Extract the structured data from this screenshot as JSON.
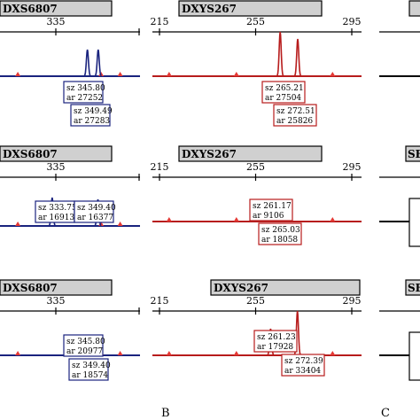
{
  "chart_data": [
    {
      "type": "line",
      "panel": "column-1",
      "color": "#1a237e",
      "rows": [
        {
          "marker": "DXS6807",
          "ticks": [
            "335"
          ],
          "peaks": [
            345.8,
            349.49
          ],
          "labels": [
            {
              "sz": "sz 345.80",
              "ar": "ar 27252"
            },
            {
              "sz": "sz 349.49",
              "ar": "ar 27283"
            }
          ]
        },
        {
          "marker": "DXS6807",
          "ticks": [
            "335"
          ],
          "peaks": [
            333.75,
            349.4
          ],
          "labels": [
            {
              "sz": "sz 333.75",
              "ar": "ar 16913"
            },
            {
              "sz": "sz 349.40",
              "ar": "ar 16377"
            }
          ]
        },
        {
          "marker": "DXS6807",
          "ticks": [
            "335"
          ],
          "peaks": [
            345.8,
            349.4
          ],
          "labels": [
            {
              "sz": "sz 345.80",
              "ar": "ar 20977"
            },
            {
              "sz": "sz 349.40",
              "ar": "ar 18574"
            }
          ]
        }
      ]
    },
    {
      "type": "line",
      "panel": "column-2",
      "color": "#b71c1c",
      "xlim": [
        215,
        295
      ],
      "rows": [
        {
          "marker": "DXYS267",
          "ticks": [
            "215",
            "255",
            "295"
          ],
          "peaks": [
            265.21,
            272.51
          ],
          "labels": [
            {
              "sz": "sz 265.21",
              "ar": "ar 27504"
            },
            {
              "sz": "sz 272.51",
              "ar": "ar 25826"
            }
          ]
        },
        {
          "marker": "DXYS267",
          "ticks": [
            "215",
            "255",
            "295"
          ],
          "peaks": [
            261.17,
            265.03
          ],
          "labels": [
            {
              "sz": "sz 261.17",
              "ar": "ar 9106"
            },
            {
              "sz": "sz 265.03",
              "ar": "ar 18058"
            }
          ]
        },
        {
          "marker": "DXYS267",
          "ticks": [
            "215",
            "255",
            "295"
          ],
          "peaks": [
            261.23,
            272.39
          ],
          "labels": [
            {
              "sz": "sz 261.23",
              "ar": "ar 17928"
            },
            {
              "sz": "sz 272.39",
              "ar": "ar 33404"
            }
          ]
        }
      ]
    }
  ],
  "column3": {
    "marker_fragment": "SE",
    "color": "#000000"
  },
  "panel_letters": [
    "B",
    "C"
  ]
}
